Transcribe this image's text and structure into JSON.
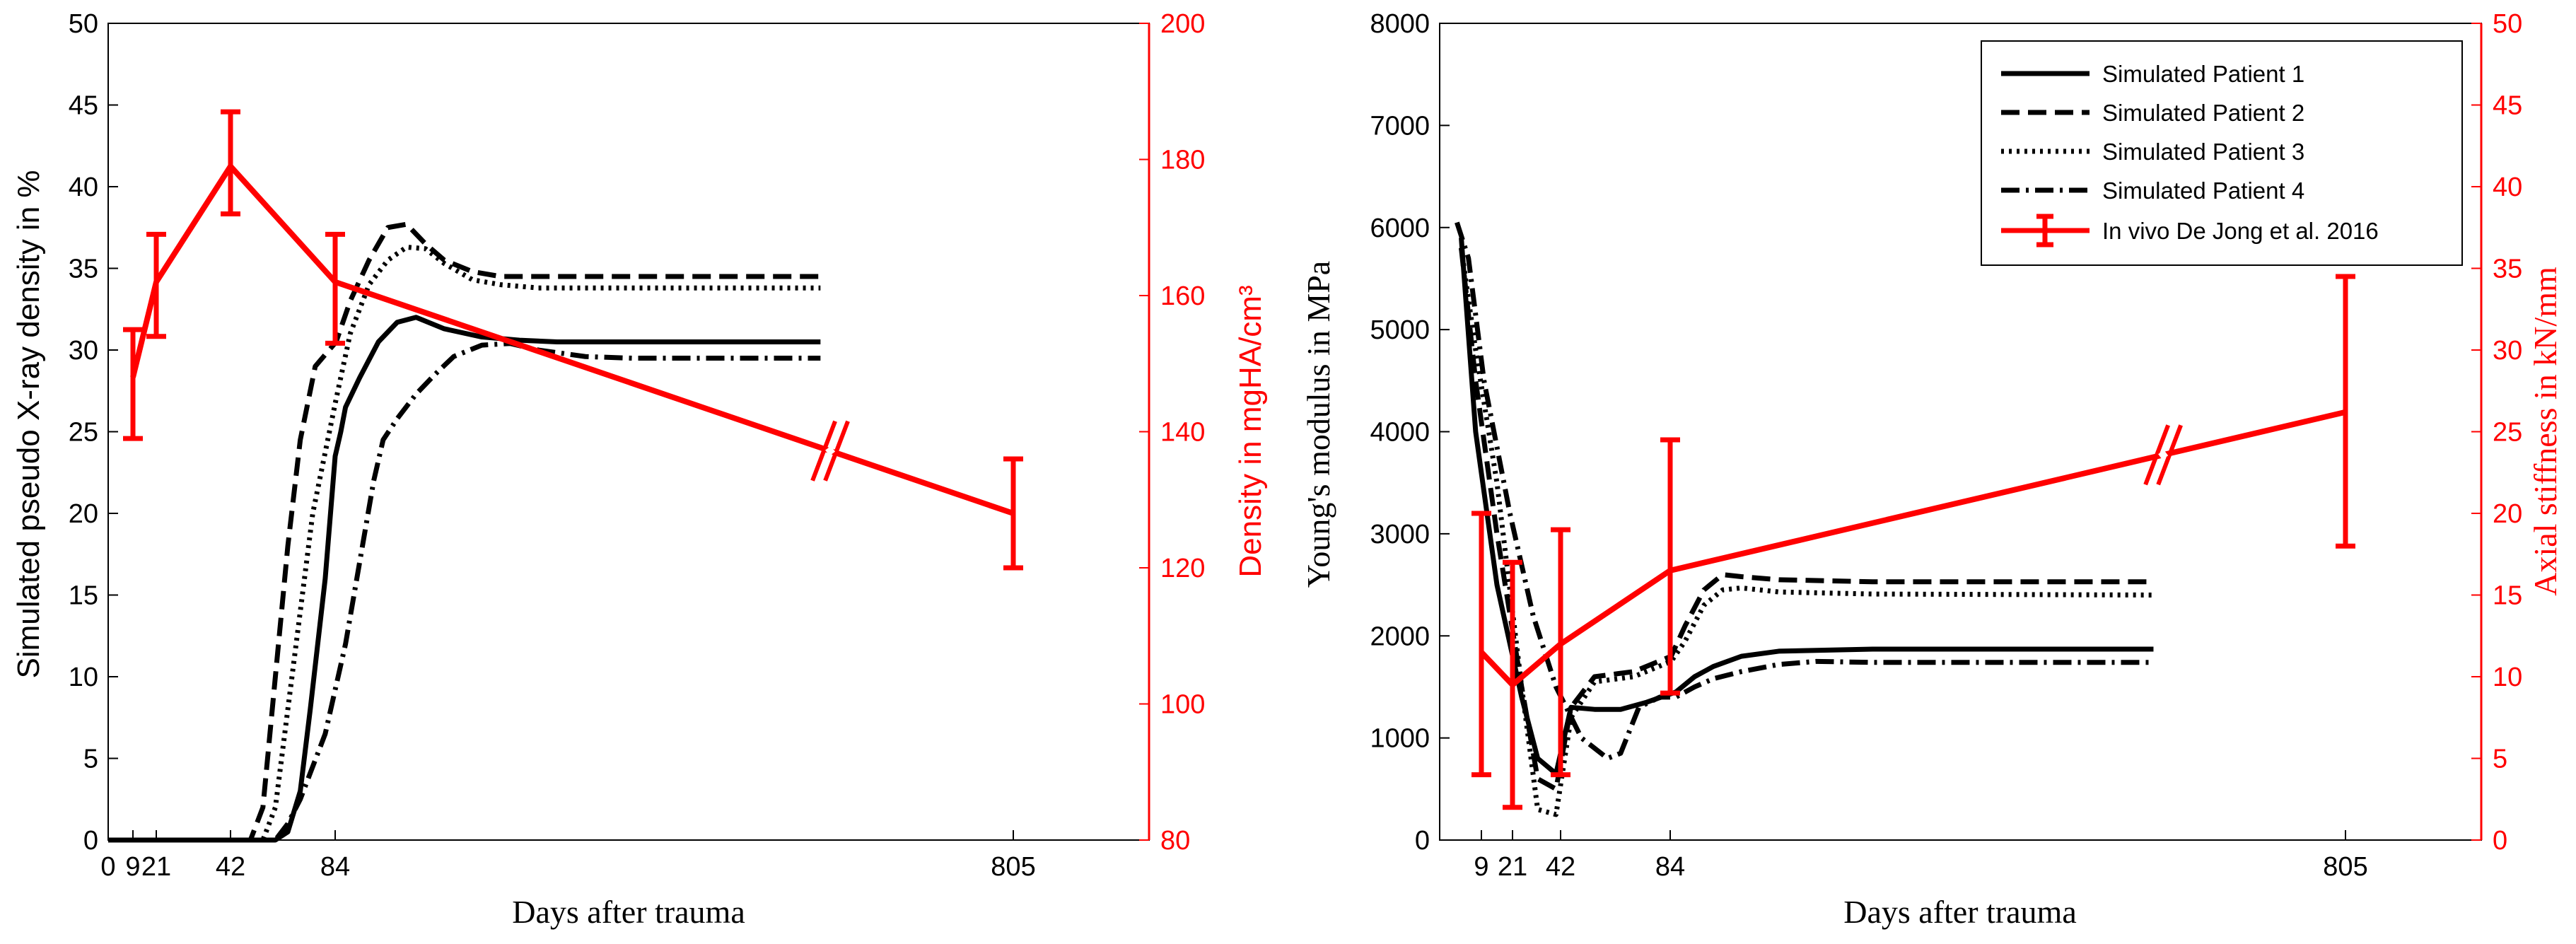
{
  "colors": {
    "black": "#000000",
    "red": "#ff0000",
    "white": "#ffffff"
  },
  "chart_data": [
    {
      "type": "line",
      "id": "left",
      "xlabel": "Days after trauma",
      "ylabel": "Simulated pseudo X-ray density in %",
      "ylabel_right": "Density in mgHA/cm³",
      "xlim": [
        0,
        1000
      ],
      "ylim": [
        0,
        50
      ],
      "ylim_right": [
        80,
        200
      ],
      "xticks": [
        0,
        9,
        21,
        42,
        84,
        805
      ],
      "xtick_labels": [
        "0",
        "9",
        "21",
        "42",
        "84",
        "805"
      ],
      "yticks": [
        0,
        5,
        10,
        15,
        20,
        25,
        30,
        35,
        40,
        45,
        50
      ],
      "yticks_right": [
        80,
        100,
        120,
        140,
        160,
        180,
        200
      ],
      "series": [
        {
          "name": "Simulated Patient 1",
          "style": "solid",
          "x": [
            0,
            60,
            65,
            70,
            74,
            80,
            84,
            90,
            95,
            110,
            130,
            150,
            170,
            200,
            240,
            280,
            320,
            400,
            600
          ],
          "y": [
            0,
            0,
            0.5,
            3,
            8,
            16,
            23.5,
            25,
            26.5,
            28.3,
            30.5,
            31.7,
            32,
            31.3,
            30.8,
            30.6,
            30.5,
            30.5,
            30.5
          ]
        },
        {
          "name": "Simulated Patient 2",
          "style": "dashed",
          "x": [
            0,
            50,
            55,
            60,
            65,
            70,
            76,
            85,
            100,
            120,
            140,
            160,
            180,
            200,
            230,
            260,
            300,
            400,
            600
          ],
          "y": [
            0,
            0,
            2,
            10,
            18,
            24.5,
            29,
            30.5,
            33,
            35.5,
            37.5,
            37.7,
            36.5,
            35.5,
            34.8,
            34.5,
            34.5,
            34.5,
            34.5
          ]
        },
        {
          "name": "Simulated Patient 3",
          "style": "dotted",
          "x": [
            0,
            55,
            60,
            65,
            70,
            75,
            85,
            100,
            120,
            140,
            160,
            180,
            200,
            230,
            260,
            300,
            400,
            600
          ],
          "y": [
            0,
            0,
            2,
            8,
            14,
            20,
            27,
            31,
            34,
            35.5,
            36.3,
            36.2,
            35.3,
            34.3,
            34,
            33.8,
            33.8,
            33.8
          ]
        },
        {
          "name": "Simulated Patient 4",
          "style": "dashdot",
          "x": [
            0,
            60,
            65,
            70,
            80,
            95,
            110,
            125,
            135,
            150,
            170,
            190,
            210,
            240,
            270,
            300,
            350,
            400,
            600
          ],
          "y": [
            0,
            0,
            1,
            2.5,
            6.5,
            12,
            17,
            22,
            24.5,
            25.8,
            27.3,
            28.5,
            29.6,
            30.3,
            30.4,
            30,
            29.6,
            29.5,
            29.5
          ]
        },
        {
          "name": "In vivo De Jong et al. 2016",
          "style": "red-errorbar",
          "axis": "right",
          "broken_between": [
            84,
            805
          ],
          "x": [
            9,
            21,
            42,
            84,
            805
          ],
          "y": [
            148,
            162,
            179,
            162,
            128
          ],
          "err_low": [
            139,
            154,
            172,
            153,
            120
          ],
          "err_high": [
            155,
            169,
            187,
            169,
            136
          ]
        }
      ]
    },
    {
      "type": "line",
      "id": "right",
      "xlabel": "Days after trauma",
      "ylabel": "Young's modulus in MPa",
      "ylabel_right": "Axial stiffness in kN/mm",
      "xlim": [
        0,
        1000
      ],
      "ylim": [
        0,
        8000
      ],
      "ylim_right": [
        0,
        50
      ],
      "xticks": [
        9,
        21,
        42,
        84,
        805
      ],
      "xtick_labels": [
        "9",
        "21",
        "42",
        "84",
        "805"
      ],
      "yticks": [
        0,
        1000,
        2000,
        3000,
        4000,
        5000,
        6000,
        7000,
        8000
      ],
      "yticks_right": [
        0,
        5,
        10,
        15,
        20,
        25,
        30,
        35,
        40,
        45,
        50
      ],
      "legend_position": "top-right",
      "series": [
        {
          "name": "Simulated Patient 1",
          "style": "solid",
          "x": [
            -5,
            5,
            15,
            25,
            32,
            40,
            46,
            55,
            65,
            75,
            90,
            110,
            130,
            160,
            200,
            300,
            600
          ],
          "y": [
            5900,
            4000,
            2500,
            1400,
            800,
            650,
            1300,
            1280,
            1280,
            1350,
            1450,
            1600,
            1700,
            1800,
            1850,
            1870,
            1870
          ]
        },
        {
          "name": "Simulated Patient 2",
          "style": "dashed",
          "x": [
            -5,
            5,
            15,
            25,
            32,
            40,
            46,
            55,
            70,
            85,
            100,
            120,
            140,
            160,
            200,
            300,
            600
          ],
          "y": [
            5800,
            4500,
            3000,
            1500,
            600,
            500,
            1300,
            1600,
            1650,
            1800,
            2100,
            2450,
            2600,
            2580,
            2550,
            2530,
            2530
          ]
        },
        {
          "name": "Simulated Patient 3",
          "style": "dotted",
          "x": [
            -5,
            5,
            15,
            25,
            32,
            40,
            46,
            55,
            70,
            85,
            100,
            120,
            140,
            160,
            200,
            300,
            600
          ],
          "y": [
            5800,
            4800,
            3500,
            1500,
            300,
            250,
            1200,
            1550,
            1600,
            1750,
            1950,
            2300,
            2450,
            2470,
            2430,
            2410,
            2400
          ]
        },
        {
          "name": "Simulated Patient 4",
          "style": "dashdot",
          "x": [
            -8,
            0,
            10,
            20,
            30,
            40,
            50,
            60,
            65,
            72,
            80,
            90,
            110,
            130,
            160,
            200,
            240,
            300,
            600
          ],
          "y": [
            6050,
            5700,
            4500,
            3200,
            2200,
            1500,
            1000,
            800,
            850,
            1300,
            1400,
            1400,
            1500,
            1580,
            1650,
            1720,
            1750,
            1740,
            1740
          ]
        },
        {
          "name": "In vivo De Jong et al. 2016",
          "style": "red-errorbar",
          "axis": "right",
          "broken_between": [
            84,
            805
          ],
          "x": [
            9,
            21,
            42,
            84,
            805
          ],
          "y": [
            11.5,
            9.5,
            12,
            16.5,
            26.2
          ],
          "err_low": [
            4,
            2,
            4,
            9,
            18
          ],
          "err_high": [
            20,
            17,
            19,
            24.5,
            34.5
          ]
        }
      ]
    }
  ]
}
